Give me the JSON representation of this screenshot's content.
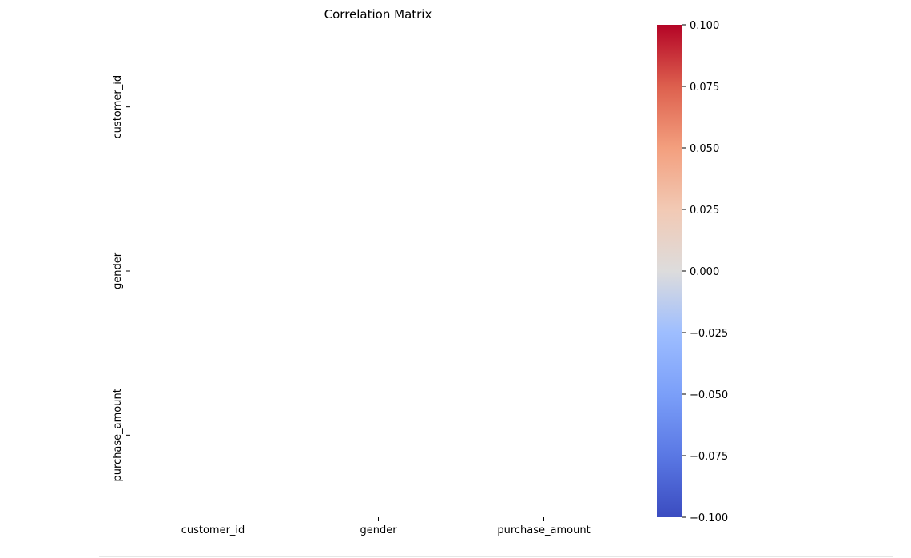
{
  "chart_data": {
    "type": "heatmap",
    "title": "Correlation Matrix",
    "x_categories": [
      "customer_id",
      "gender",
      "purchase_amount"
    ],
    "y_categories": [
      "customer_id",
      "gender",
      "purchase_amount"
    ],
    "values": [
      [
        null,
        null,
        null
      ],
      [
        null,
        null,
        null
      ],
      [
        null,
        null,
        null
      ]
    ],
    "annotations": "none",
    "colormap": "coolwarm",
    "colorbar": {
      "range": [
        -0.1,
        0.1
      ],
      "ticks": [
        0.1,
        0.075,
        0.05,
        0.025,
        0.0,
        -0.025,
        -0.05,
        -0.075,
        -0.1
      ],
      "tick_labels": [
        "0.100",
        "0.075",
        "0.050",
        "0.025",
        "0.000",
        "−0.025",
        "−0.050",
        "−0.075",
        "−0.100"
      ],
      "low_color": "#3b4cc0",
      "mid_color": "#dddcdc",
      "high_color": "#b40426"
    },
    "grid": false,
    "legend": "right"
  }
}
